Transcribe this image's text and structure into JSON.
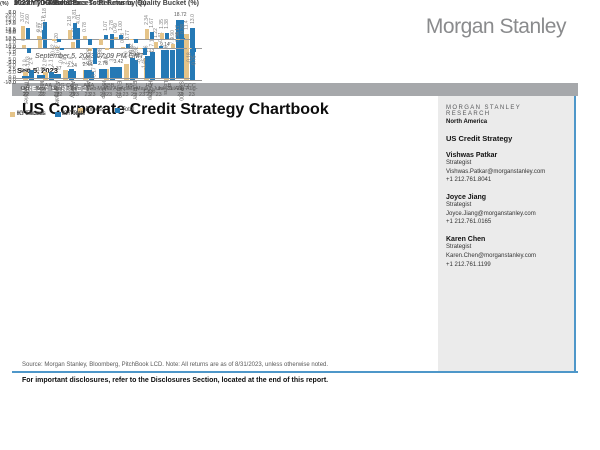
{
  "header": {
    "logo": "Morgan Stanley",
    "datetime": "September 5, 2023 07:09 PM GMT",
    "date": "Sep 5, 2023",
    "banner": "CREDIT STRATEGY"
  },
  "title": "US Corporate Credit Strategy Chartbook",
  "sidebar": {
    "research_label": "MORGAN STANLEY RESEARCH",
    "region": "North America",
    "team": "US Credit Strategy",
    "analysts": [
      {
        "name": "Vishwas Patkar",
        "role": "Strategist",
        "email": "Vishwas.Patkar@morganstanley.com",
        "phone": "+1 212.761.8041"
      },
      {
        "name": "Joyce Jiang",
        "role": "Strategist",
        "email": "Joyce.Jiang@morganstanley.com",
        "phone": "+1 212.761.0165"
      },
      {
        "name": "Karen Chen",
        "role": "Strategist",
        "email": "Karen.Chen@morganstanley.com",
        "phone": "+1 212.761.1199"
      }
    ]
  },
  "footer": {
    "source": "Source: Morgan Stanley, Bloomberg, PitchBook LCD. Note: All returns are as of 8/31/2023, unless otherwise noted.",
    "disclosure": "For important disclosures, refer to the Disclosures Section, located at the end of this report."
  },
  "colors": {
    "excess_bar": "#e5c489",
    "total_bar": "#2579b5",
    "banner_gray": "#a6a8ab",
    "rule_blue": "#4e97c9",
    "sidebar_bg": "#ebebeb"
  },
  "chart_data": [
    {
      "id": "quality",
      "type": "bar",
      "title": "2023 YTD Total & Excess Returns by Quality Bucket  (%)",
      "axis_unit": "(%)",
      "categories": [
        "A",
        "AA",
        "IG Corp",
        "AAA",
        "BBB",
        "BB",
        "HY\nCorp",
        "B",
        "CCC"
      ],
      "series": [
        {
          "name": "Excess",
          "color": "#e5c489",
          "values": [
            2.0,
            2.0,
            2.4,
            2.5,
            2.8,
            4.0,
            5.6,
            5.6,
            11.4
          ]
        },
        {
          "name": "Total",
          "color": "#2579b5",
          "values": [
            2.4,
            2.1,
            2.8,
            1.9,
            3.2,
            5.4,
            7.1,
            7.4,
            13.0
          ]
        }
      ],
      "ylim": [
        0,
        15
      ],
      "yticks": [
        0,
        2.5,
        5,
        7.5,
        10,
        12.5,
        15
      ],
      "grid": false,
      "legend_position": "bottom"
    },
    {
      "id": "asset",
      "type": "bar",
      "title": "2023 YTD Asset Class Total Returns (%)",
      "axis_unit": "(%)",
      "categories": [
        "Treasuries",
        "MBS",
        "Aggregate",
        "Agency",
        "ABS",
        "IG Corp",
        "EUR IG",
        "EUR HY",
        "HY Corp",
        "Loans",
        "S&P 500"
      ],
      "series": [
        {
          "name": "Total Return",
          "color": "#2579b5",
          "values": [
            0.7,
            0.95,
            1.37,
            2.24,
            2.44,
            2.76,
            3.42,
            5.94,
            7.13,
            9.14,
            18.72
          ]
        }
      ],
      "ylim": [
        0,
        20
      ],
      "yticks": [
        0,
        2.5,
        5,
        7.5,
        10,
        12.5,
        15,
        17.5,
        20
      ],
      "grid": false,
      "legend_position": "none"
    },
    {
      "id": "ig",
      "type": "bar",
      "title": "Monthly IG Returns",
      "axis_unit": "(%)",
      "categories": [
        "Oct-\n22",
        "Nov-\n22",
        "Dec-\n22",
        "Jan-\n23",
        "Feb-\n23",
        "Mar-\n23",
        "Apr-\n23",
        "May-\n23",
        "Jun-\n23",
        "Jul-23",
        "Aug-\n23"
      ],
      "series": [
        {
          "name": "IG Excess",
          "color": "#e5c489",
          "values": [
            0.6,
            2.11,
            0.2,
            1.2,
            -0.54,
            -0.42,
            0.18,
            -0.18,
            1.22,
            0.9,
            -0.18
          ]
        },
        {
          "name": "IG Total",
          "color": "#2579b5",
          "values": [
            -1.03,
            5.18,
            -0.44,
            4.01,
            -3.17,
            2.78,
            0.77,
            -1.45,
            0.41,
            0.34,
            -0.75
          ]
        }
      ],
      "ylim": [
        -7,
        7
      ],
      "yticks": [
        7,
        5,
        3,
        1,
        -1,
        -3,
        -5,
        -7
      ],
      "grid": false,
      "legend_position": "bottom"
    },
    {
      "id": "hy",
      "type": "bar",
      "title": "Monthly HY Returns",
      "axis_unit": "(%)",
      "categories": [
        "Oct-\n22",
        "Nov-\n22",
        "Dec-\n22",
        "Jan-\n23",
        "Feb-\n23",
        "Mar-\n23",
        "Apr-\n23",
        "May-\n23",
        "Jun-\n23",
        "Jul-23",
        "Aug-\n23"
      ],
      "series": [
        {
          "name": "HY Excess",
          "color": "#e5c489",
          "values": [
            3.07,
            0.77,
            -0.42,
            2.18,
            0.78,
            -1.38,
            0.49,
            -0.22,
            2.34,
            1.35,
            0.17
          ]
        },
        {
          "name": "HY Total",
          "color": "#2579b5",
          "values": [
            2.6,
            2.17,
            -0.62,
            3.81,
            -1.29,
            1.07,
            1.0,
            -0.92,
            1.67,
            1.38,
            0.28
          ]
        }
      ],
      "ylim": [
        -10,
        6
      ],
      "yticks": [
        6,
        2,
        -2,
        -6,
        -10
      ],
      "grid": false,
      "legend_position": "bottom"
    }
  ]
}
